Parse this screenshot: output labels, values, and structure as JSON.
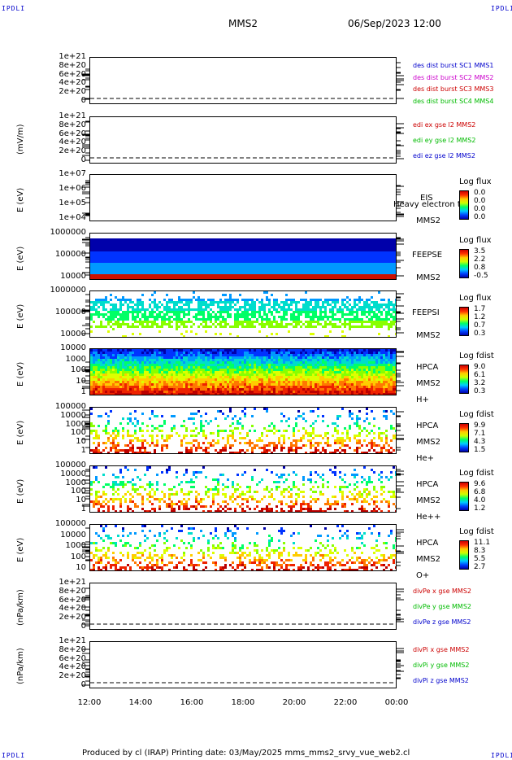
{
  "corner": "IPDLI",
  "header": {
    "mission": "MMS2",
    "datetime": "06/Sep/2023 12:00"
  },
  "colors": {
    "blue": "#0000cc",
    "red": "#cc0000",
    "green": "#00bb00",
    "magenta": "#cc00cc",
    "orange": "#ff8800"
  },
  "chart_data": [
    {
      "type": "line",
      "yticks": [
        "1e+21",
        "8e+20",
        "6e+20",
        "4e+20",
        "2e+20",
        "0"
      ],
      "legend": [
        {
          "name": "des dist burst SC1 MMS1",
          "color": "#0000cc"
        },
        {
          "name": "des dist burst SC2 MMS2",
          "color": "#cc00cc"
        },
        {
          "name": "des dist burst SC3 MMS3",
          "color": "#cc0000"
        },
        {
          "name": "des dist burst SC4 MMS4",
          "color": "#00bb00"
        }
      ]
    },
    {
      "type": "line",
      "ylabel": "(mV/m)",
      "yticks": [
        "1e+21",
        "8e+20",
        "6e+20",
        "4e+20",
        "2e+20",
        "0"
      ],
      "legend": [
        {
          "name": "edi ex gse l2 MMS2",
          "color": "#cc0000"
        },
        {
          "name": "edi ey gse l2 MMS2",
          "color": "#00bb00"
        },
        {
          "name": "edi ez gse l2 MMS2",
          "color": "#0000cc"
        }
      ]
    },
    {
      "type": "heatmap",
      "ylabel": "E (eV)",
      "yticks": [
        "1e+07",
        "1e+06",
        "1e+05",
        "1e+04"
      ],
      "labels": [
        "EIS",
        "Heavy electron to",
        "MMS2"
      ],
      "cbar_title": "Log flux",
      "cbar": [
        "0.0",
        "0.0",
        "0.0",
        "0.0"
      ]
    },
    {
      "type": "heatmap",
      "ylabel": "E (eV)",
      "yticks": [
        "1000000",
        "100000",
        "10000"
      ],
      "labels": [
        "FEEPSE",
        "MMS2"
      ],
      "cbar_title": "Log flux",
      "cbar": [
        "3.5",
        "2.2",
        "0.8",
        "-0.5"
      ]
    },
    {
      "type": "heatmap",
      "ylabel": "E (eV)",
      "yticks": [
        "1000000",
        "100000",
        "10000"
      ],
      "labels": [
        "FEEPSI",
        "MMS2"
      ],
      "cbar_title": "Log flux",
      "cbar": [
        "1.7",
        "1.2",
        "0.7",
        "0.3"
      ]
    },
    {
      "type": "heatmap",
      "ylabel": "E (eV)",
      "yticks": [
        "10000",
        "1000",
        "100",
        "10",
        "1"
      ],
      "labels": [
        "HPCA",
        "MMS2",
        "H+"
      ],
      "cbar_title": "Log fdist",
      "cbar": [
        "9.0",
        "6.1",
        "3.2",
        "0.3"
      ]
    },
    {
      "type": "heatmap",
      "ylabel": "E (eV)",
      "yticks": [
        "100000",
        "10000",
        "1000",
        "100",
        "10",
        "1"
      ],
      "labels": [
        "HPCA",
        "MMS2",
        "He+"
      ],
      "cbar_title": "Log fdist",
      "cbar": [
        "9.9",
        "7.1",
        "4.3",
        "1.5"
      ]
    },
    {
      "type": "heatmap",
      "ylabel": "E (eV)",
      "yticks": [
        "100000",
        "10000",
        "1000",
        "100",
        "10",
        "1"
      ],
      "labels": [
        "HPCA",
        "MMS2",
        "He++"
      ],
      "cbar_title": "Log fdist",
      "cbar": [
        "9.6",
        "6.8",
        "4.0",
        "1.2"
      ]
    },
    {
      "type": "heatmap",
      "ylabel": "E (eV)",
      "yticks": [
        "100000",
        "10000",
        "1000",
        "100",
        "10"
      ],
      "labels": [
        "HPCA",
        "MMS2",
        "O+"
      ],
      "cbar_title": "Log fdist",
      "cbar": [
        "11.1",
        "8.3",
        "5.5",
        "2.7"
      ]
    },
    {
      "type": "line",
      "ylabel": "(nPa/km)",
      "yticks": [
        "1e+21",
        "8e+20",
        "6e+20",
        "4e+20",
        "2e+20",
        "0"
      ],
      "legend": [
        {
          "name": "divPe x gse MMS2",
          "color": "#cc0000"
        },
        {
          "name": "divPe y gse MMS2",
          "color": "#00bb00"
        },
        {
          "name": "divPe z gse MMS2",
          "color": "#0000cc"
        }
      ]
    },
    {
      "type": "line",
      "ylabel": "(nPa/km)",
      "yticks": [
        "1e+21",
        "8e+20",
        "6e+20",
        "4e+20",
        "2e+20",
        "0"
      ],
      "legend": [
        {
          "name": "divPi x gse MMS2",
          "color": "#cc0000"
        },
        {
          "name": "divPi y gse MMS2",
          "color": "#00bb00"
        },
        {
          "name": "divPi z gse MMS2",
          "color": "#0000cc"
        }
      ]
    }
  ],
  "xticks": [
    "12:00",
    "14:00",
    "16:00",
    "18:00",
    "20:00",
    "22:00",
    "00:00"
  ],
  "footer": "Produced by cl (IRAP)   Printing date: 03/May/2025   mms_mms2_srvy_vue_web2.cl"
}
